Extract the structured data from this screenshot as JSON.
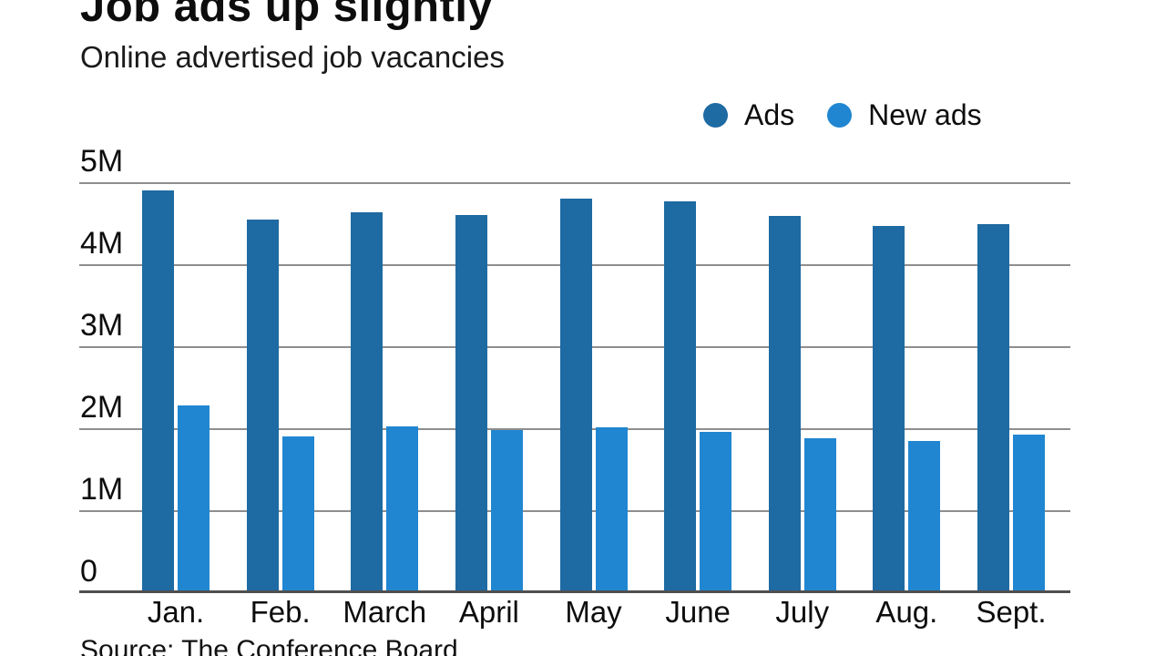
{
  "header": {
    "title": "Job ads up slightly",
    "subtitle": "Online advertised job vacancies"
  },
  "footer": {
    "source": "Source: The Conference Board"
  },
  "colors": {
    "ads": "#1e6aa2",
    "new_ads": "#2086d1",
    "gridline": "#8e8e8e",
    "axis_line": "#4f4f4f",
    "text": "#0d0d0d"
  },
  "chart_data": {
    "type": "bar",
    "title": "Job ads up slightly",
    "subtitle": "Online advertised job vacancies",
    "source": "Source: The Conference Board",
    "categories": [
      "Jan.",
      "Feb.",
      "March",
      "April",
      "May",
      "June",
      "July",
      "Aug.",
      "Sept."
    ],
    "series": [
      {
        "name": "Ads",
        "color": "#1e6aa2",
        "values": [
          4.9,
          4.55,
          4.63,
          4.6,
          4.8,
          4.77,
          4.59,
          4.47,
          4.49
        ]
      },
      {
        "name": "New ads",
        "color": "#2086d1",
        "values": [
          2.28,
          1.9,
          2.02,
          1.98,
          2.01,
          1.96,
          1.88,
          1.85,
          1.92
        ]
      }
    ],
    "unit": "millions",
    "xlabel": "",
    "ylabel": "",
    "ylim": [
      0,
      5
    ],
    "y_ticks": [
      {
        "label": "5M",
        "value": 5
      },
      {
        "label": "4M",
        "value": 4
      },
      {
        "label": "3M",
        "value": 3
      },
      {
        "label": "2M",
        "value": 2
      },
      {
        "label": "1M",
        "value": 1
      },
      {
        "label": "0",
        "value": 0
      }
    ],
    "grid": true,
    "legend_position": "top-right"
  }
}
